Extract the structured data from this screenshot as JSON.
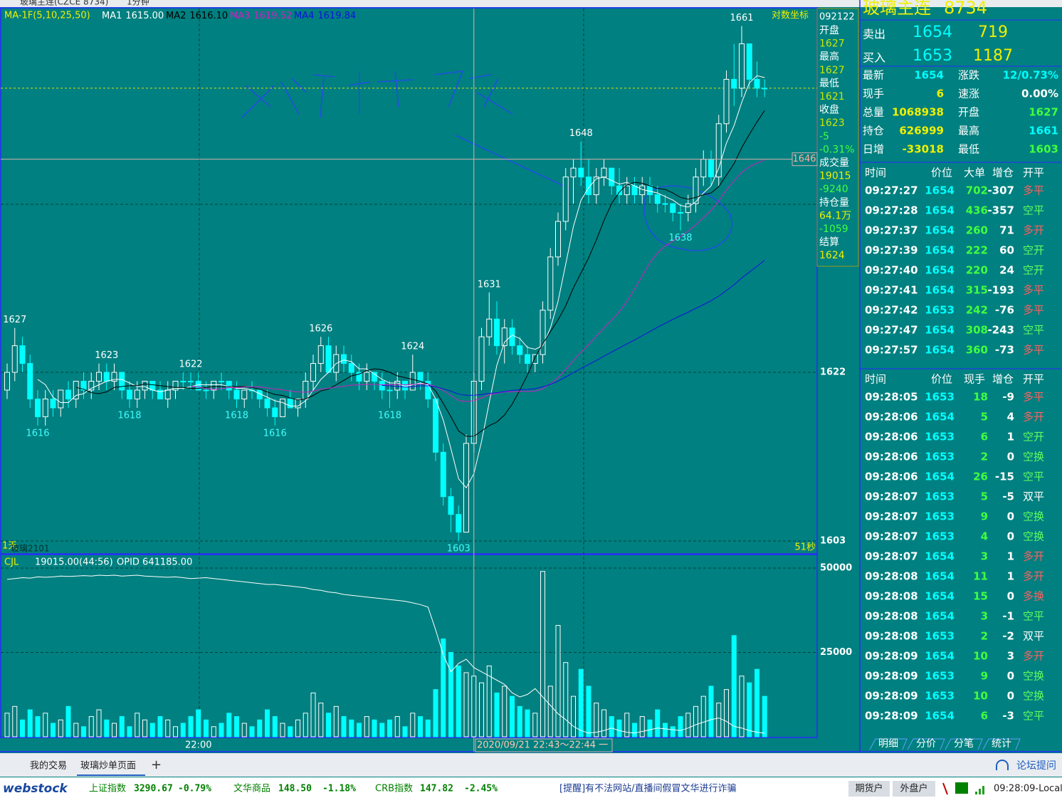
{
  "window_title": {
    "name": "玻璃主连(CZCE 8734)",
    "period": "1分钟"
  },
  "chart_data": {
    "type": "candlestick",
    "indicator": "MA-1F(5,10,25,50)",
    "ma": [
      {
        "name": "MA1",
        "value": "1615.00",
        "color": "#ffffff"
      },
      {
        "name": "MA2",
        "value": "1616.10",
        "color": "#000000"
      },
      {
        "name": "MA3",
        "value": "1619.52",
        "color": "#d020c0"
      },
      {
        "name": "MA4",
        "value": "1619.84",
        "color": "#1010e0"
      }
    ],
    "scale_label": "对数坐标",
    "date_code": "092122",
    "ylim": [
      1601.56,
      1662.97
    ],
    "yticks": [
      1622,
      1603
    ],
    "grid": true,
    "last_price": 1654,
    "crosshair_value": 1646,
    "x_labels": [
      {
        "index": 25,
        "label": "22:00"
      }
    ],
    "time_range": "2020/09/21 22:43～22:44 一",
    "footer_left": "1天",
    "footer_contract": "玻璃2101",
    "countdown": "51秒",
    "candles": [
      [
        1620,
        1623,
        1619,
        1622
      ],
      [
        1622,
        1627,
        1621,
        1625
      ],
      [
        1625,
        1626,
        1622,
        1623
      ],
      [
        1623,
        1624,
        1618,
        1619
      ],
      [
        1619,
        1620,
        1616,
        1617
      ],
      [
        1617,
        1620,
        1616,
        1619
      ],
      [
        1619,
        1620,
        1617,
        1618
      ],
      [
        1618,
        1620,
        1617,
        1620
      ],
      [
        1620,
        1621,
        1618,
        1619
      ],
      [
        1619,
        1621,
        1618,
        1621
      ],
      [
        1621,
        1622,
        1619,
        1620
      ],
      [
        1620,
        1622,
        1619,
        1621
      ],
      [
        1621,
        1623,
        1620,
        1622
      ],
      [
        1622,
        1623,
        1620,
        1621
      ],
      [
        1621,
        1623,
        1620,
        1622
      ],
      [
        1622,
        1622,
        1619,
        1620
      ],
      [
        1620,
        1621,
        1618,
        1619
      ],
      [
        1619,
        1621,
        1618,
        1620
      ],
      [
        1620,
        1621,
        1619,
        1621
      ],
      [
        1621,
        1621,
        1619,
        1620
      ],
      [
        1620,
        1621,
        1619,
        1619
      ],
      [
        1619,
        1621,
        1618,
        1620
      ],
      [
        1620,
        1621,
        1619,
        1621
      ],
      [
        1621,
        1622,
        1620,
        1621
      ],
      [
        1621,
        1622,
        1620,
        1621
      ],
      [
        1621,
        1622,
        1620,
        1620
      ],
      [
        1620,
        1621,
        1619,
        1620
      ],
      [
        1620,
        1621,
        1619,
        1621
      ],
      [
        1621,
        1622,
        1620,
        1621
      ],
      [
        1621,
        1621,
        1619,
        1620
      ],
      [
        1620,
        1621,
        1618,
        1619
      ],
      [
        1619,
        1620,
        1618,
        1620
      ],
      [
        1620,
        1621,
        1619,
        1620
      ],
      [
        1620,
        1620,
        1618,
        1619
      ],
      [
        1619,
        1620,
        1617,
        1618
      ],
      [
        1618,
        1619,
        1616,
        1617
      ],
      [
        1617,
        1619,
        1617,
        1619
      ],
      [
        1619,
        1620,
        1618,
        1618
      ],
      [
        1618,
        1619,
        1617,
        1619
      ],
      [
        1619,
        1622,
        1618,
        1621
      ],
      [
        1621,
        1624,
        1620,
        1623
      ],
      [
        1623,
        1626,
        1622,
        1625
      ],
      [
        1625,
        1626,
        1622,
        1622
      ],
      [
        1622,
        1625,
        1621,
        1624
      ],
      [
        1624,
        1625,
        1622,
        1623
      ],
      [
        1623,
        1624,
        1621,
        1622
      ],
      [
        1622,
        1623,
        1620,
        1621
      ],
      [
        1621,
        1623,
        1620,
        1622
      ],
      [
        1622,
        1622,
        1620,
        1621
      ],
      [
        1621,
        1622,
        1619,
        1620
      ],
      [
        1620,
        1621,
        1618,
        1620
      ],
      [
        1620,
        1622,
        1619,
        1621
      ],
      [
        1621,
        1621,
        1619,
        1620
      ],
      [
        1620,
        1624,
        1620,
        1622
      ],
      [
        1622,
        1622,
        1620,
        1621
      ],
      [
        1621,
        1622,
        1618,
        1619
      ],
      [
        1619,
        1619,
        1612,
        1613
      ],
      [
        1613,
        1614,
        1607,
        1608
      ],
      [
        1608,
        1609,
        1604,
        1606
      ],
      [
        1606,
        1607,
        1603,
        1604
      ],
      [
        1604,
        1615,
        1604,
        1614
      ],
      [
        1614,
        1622,
        1613,
        1621
      ],
      [
        1621,
        1627,
        1620,
        1626
      ],
      [
        1626,
        1631,
        1625,
        1628
      ],
      [
        1628,
        1630,
        1624,
        1625
      ],
      [
        1625,
        1628,
        1623,
        1627
      ],
      [
        1627,
        1628,
        1624,
        1625
      ],
      [
        1625,
        1626,
        1623,
        1624
      ],
      [
        1624,
        1625,
        1622,
        1623
      ],
      [
        1623,
        1624,
        1622,
        1624
      ],
      [
        1624,
        1630,
        1623,
        1629
      ],
      [
        1629,
        1636,
        1628,
        1635
      ],
      [
        1635,
        1640,
        1634,
        1639
      ],
      [
        1639,
        1645,
        1638,
        1644
      ],
      [
        1644,
        1646,
        1641,
        1645
      ],
      [
        1645,
        1648,
        1643,
        1644
      ],
      [
        1644,
        1646,
        1641,
        1642
      ],
      [
        1642,
        1645,
        1641,
        1644
      ],
      [
        1644,
        1646,
        1643,
        1645
      ],
      [
        1645,
        1645,
        1642,
        1643
      ],
      [
        1643,
        1645,
        1641,
        1642
      ],
      [
        1642,
        1644,
        1641,
        1643
      ],
      [
        1643,
        1644,
        1641,
        1642
      ],
      [
        1642,
        1644,
        1641,
        1643
      ],
      [
        1643,
        1644,
        1641,
        1642
      ],
      [
        1642,
        1643,
        1640,
        1641
      ],
      [
        1641,
        1642,
        1640,
        1641
      ],
      [
        1641,
        1641,
        1639,
        1640
      ],
      [
        1640,
        1641,
        1638,
        1640
      ],
      [
        1640,
        1642,
        1639,
        1641
      ],
      [
        1641,
        1645,
        1640,
        1644
      ],
      [
        1644,
        1647,
        1643,
        1646
      ],
      [
        1646,
        1647,
        1643,
        1644
      ],
      [
        1644,
        1651,
        1643,
        1650
      ],
      [
        1650,
        1656,
        1649,
        1655
      ],
      [
        1655,
        1659,
        1652,
        1654
      ],
      [
        1654,
        1661,
        1653,
        1659
      ],
      [
        1659,
        1659,
        1654,
        1655
      ],
      [
        1655,
        1657,
        1653,
        1654
      ],
      [
        1654,
        1655,
        1653,
        1654
      ]
    ],
    "annotations": [
      {
        "index": 1,
        "value": 1627
      },
      {
        "index": 4,
        "value": 1616
      },
      {
        "index": 13,
        "value": 1623
      },
      {
        "index": 16,
        "value": 1618
      },
      {
        "index": 24,
        "value": 1622
      },
      {
        "index": 30,
        "value": 1618
      },
      {
        "index": 35,
        "value": 1616
      },
      {
        "index": 41,
        "value": 1626
      },
      {
        "index": 50,
        "value": 1618
      },
      {
        "index": 53,
        "value": 1624
      },
      {
        "index": 59,
        "value": 1603
      },
      {
        "index": 63,
        "value": 1631
      },
      {
        "index": 75,
        "value": 1648
      },
      {
        "index": 88,
        "value": 1638
      },
      {
        "index": 96,
        "value": 1661
      }
    ],
    "info_column": [
      {
        "text": "开盘",
        "color": "#ffffff"
      },
      {
        "text": "1627",
        "color": "#c8e800"
      },
      {
        "text": "最高",
        "color": "#ffffff"
      },
      {
        "text": "1627",
        "color": "#c8e800"
      },
      {
        "text": "最低",
        "color": "#ffffff"
      },
      {
        "text": "1621",
        "color": "#c8e800"
      },
      {
        "text": "收盘",
        "color": "#ffffff"
      },
      {
        "text": "1623",
        "color": "#c8e800"
      },
      {
        "text": "-5",
        "color": "#40ff40"
      },
      {
        "text": "-0.31%",
        "color": "#40ff40"
      },
      {
        "text": "成交量",
        "color": "#ffffff"
      },
      {
        "text": "19015",
        "color": "#f0f000"
      },
      {
        "text": "-9240",
        "color": "#40ff40"
      },
      {
        "text": "持仓量",
        "color": "#ffffff"
      },
      {
        "text": "64.1万",
        "color": "#f0f000"
      },
      {
        "text": "-1059",
        "color": "#40ff40"
      },
      {
        "text": "结算",
        "color": "#ffffff"
      },
      {
        "text": "1624",
        "color": "#f0f000"
      }
    ],
    "volume": {
      "label": "CJL",
      "info": "19015.00(44:56)",
      "oi_label": "OPID 641185.00",
      "ylim": [
        0,
        53586
      ],
      "yticks": [
        50000,
        25000
      ],
      "values": [
        7000,
        9000,
        5000,
        8000,
        6000,
        7000,
        4000,
        5000,
        9000,
        4000,
        3000,
        6000,
        8000,
        5000,
        4000,
        6000,
        3000,
        7000,
        5000,
        4000,
        6000,
        5000,
        3000,
        4000,
        6000,
        8000,
        5000,
        3000,
        4000,
        7000,
        6000,
        4000,
        3000,
        5000,
        8000,
        6000,
        4000,
        3000,
        5000,
        7000,
        13000,
        10000,
        7000,
        9000,
        6000,
        5000,
        4000,
        6000,
        5000,
        4000,
        5000,
        6000,
        3000,
        7000,
        6000,
        5000,
        14000,
        29000,
        25000,
        21000,
        19000,
        18000,
        16000,
        21000,
        13000,
        15000,
        12000,
        9000,
        8000,
        7000,
        49000,
        15000,
        33000,
        22000,
        12000,
        20000,
        15000,
        10000,
        8000,
        6000,
        5000,
        7000,
        4000,
        6000,
        5000,
        8000,
        4000,
        3000,
        6000,
        7000,
        9000,
        12000,
        15000,
        10000,
        14000,
        30000,
        18000,
        16000,
        20000,
        12000
      ],
      "oi": [
        659500,
        659600,
        659700,
        659650,
        659800,
        659750,
        659800,
        659900,
        659850,
        659900,
        659950,
        659900,
        660000,
        659950,
        660000,
        659900,
        659950,
        660000,
        659900,
        659850,
        659800,
        659750,
        659800,
        659700,
        659600,
        659650,
        659700,
        659600,
        659500,
        659400,
        659300,
        659200,
        659100,
        659000,
        658900,
        658900,
        658800,
        658700,
        658600,
        658500,
        658300,
        658200,
        658000,
        657900,
        657700,
        657600,
        657500,
        657400,
        657300,
        657200,
        657100,
        657000,
        656900,
        656700,
        656500,
        656200,
        653500,
        650500,
        648500,
        649500,
        650000,
        649000,
        648500,
        648000,
        647500,
        647000,
        646000,
        645500,
        645800,
        646500,
        645500,
        644500,
        643500,
        642800,
        642000,
        641500,
        641200,
        641300,
        641500,
        641800,
        641500,
        641300,
        641200,
        641400,
        641600,
        641800,
        641700,
        641600,
        641500,
        641800,
        642200,
        642500,
        642800,
        643000,
        642600,
        642000,
        641800,
        641500,
        641300,
        641185
      ]
    }
  },
  "quote_panel": {
    "title": "玻璃主连",
    "code": "8734",
    "ask": {
      "label": "卖出",
      "price": "1654",
      "size": "719"
    },
    "bid": {
      "label": "买入",
      "price": "1653",
      "size": "1187"
    },
    "stats": [
      [
        {
          "text": "最新",
          "color": "#ffffff"
        },
        {
          "text": "1654",
          "color": "#00ffff"
        },
        {
          "text": "涨跌",
          "color": "#ffffff"
        },
        {
          "text": "12/0.73%",
          "color": "#00ffff"
        }
      ],
      [
        {
          "text": "现手",
          "color": "#ffffff"
        },
        {
          "text": "6",
          "color": "#f0f000"
        },
        {
          "text": "速涨",
          "color": "#ffffff"
        },
        {
          "text": "0.00%",
          "color": "#ffffff"
        }
      ],
      [
        {
          "text": "总量",
          "color": "#ffffff"
        },
        {
          "text": "1068938",
          "color": "#f0f000"
        },
        {
          "text": "开盘",
          "color": "#ffffff"
        },
        {
          "text": "1627",
          "color": "#40ff40"
        }
      ],
      [
        {
          "text": "持仓",
          "color": "#ffffff"
        },
        {
          "text": "626999",
          "color": "#f0f000"
        },
        {
          "text": "最高",
          "color": "#ffffff"
        },
        {
          "text": "1661",
          "color": "#00ffff"
        }
      ],
      [
        {
          "text": "日增",
          "color": "#ffffff"
        },
        {
          "text": "-33018",
          "color": "#f0f000"
        },
        {
          "text": "最低",
          "color": "#ffffff"
        },
        {
          "text": "1603",
          "color": "#40ff40"
        }
      ]
    ],
    "big_trades": {
      "header": [
        "时间",
        "价位",
        "大单",
        "增仓",
        "开平"
      ],
      "rows": [
        [
          "09:27:27",
          "1654",
          "702",
          "-307",
          "多平"
        ],
        [
          "09:27:28",
          "1654",
          "436",
          "-357",
          "空平"
        ],
        [
          "09:27:37",
          "1654",
          "260",
          "71",
          "多开"
        ],
        [
          "09:27:39",
          "1654",
          "222",
          "60",
          "空开"
        ],
        [
          "09:27:40",
          "1654",
          "220",
          "24",
          "空开"
        ],
        [
          "09:27:41",
          "1654",
          "315",
          "-193",
          "多平"
        ],
        [
          "09:27:42",
          "1653",
          "242",
          "-76",
          "多平"
        ],
        [
          "09:27:47",
          "1654",
          "308",
          "-243",
          "空平"
        ],
        [
          "09:27:57",
          "1654",
          "360",
          "-73",
          "多平"
        ]
      ]
    },
    "ticks": {
      "header": [
        "时间",
        "价位",
        "现手",
        "增仓",
        "开平"
      ],
      "rows": [
        [
          "09:28:05",
          "1653",
          "18",
          "-9",
          "多平"
        ],
        [
          "09:28:06",
          "1654",
          "5",
          "4",
          "多开"
        ],
        [
          "09:28:06",
          "1653",
          "6",
          "1",
          "空开"
        ],
        [
          "09:28:06",
          "1653",
          "2",
          "0",
          "空换"
        ],
        [
          "09:28:06",
          "1654",
          "26",
          "-15",
          "空平"
        ],
        [
          "09:28:07",
          "1653",
          "5",
          "-5",
          "双平"
        ],
        [
          "09:28:07",
          "1653",
          "9",
          "0",
          "空换"
        ],
        [
          "09:28:07",
          "1653",
          "4",
          "0",
          "空换"
        ],
        [
          "09:28:07",
          "1654",
          "3",
          "1",
          "多开"
        ],
        [
          "09:28:08",
          "1654",
          "11",
          "1",
          "多开"
        ],
        [
          "09:28:08",
          "1654",
          "15",
          "0",
          "多换"
        ],
        [
          "09:28:08",
          "1654",
          "3",
          "-1",
          "空平"
        ],
        [
          "09:28:08",
          "1653",
          "2",
          "-2",
          "双平"
        ],
        [
          "09:28:09",
          "1654",
          "10",
          "3",
          "多开"
        ],
        [
          "09:28:09",
          "1653",
          "9",
          "0",
          "空换"
        ],
        [
          "09:28:09",
          "1653",
          "10",
          "0",
          "空换"
        ],
        [
          "09:28:09",
          "1654",
          "6",
          "-3",
          "空平"
        ]
      ]
    },
    "tabs": [
      "明细",
      "分价",
      "分笔",
      "统计"
    ]
  },
  "tab_bar": {
    "items": [
      "我的交易",
      "玻璃炒单页面"
    ],
    "add": "+",
    "forum": "论坛提问"
  },
  "status_bar": {
    "logo": "webstock",
    "indices": [
      {
        "name": "上证指数",
        "value": "3290.67",
        "change": "-0.79%"
      },
      {
        "name": "文华商品",
        "value": "148.50",
        "change": "-1.18%"
      },
      {
        "name": "CRB指数",
        "value": "147.82",
        "change": "-2.45%"
      }
    ],
    "notice": "[提醒]有不法网站/直播间假冒文华进行诈骗",
    "buttons": [
      "期货户",
      "外盘户"
    ],
    "clock": "09:28:09-Local"
  }
}
